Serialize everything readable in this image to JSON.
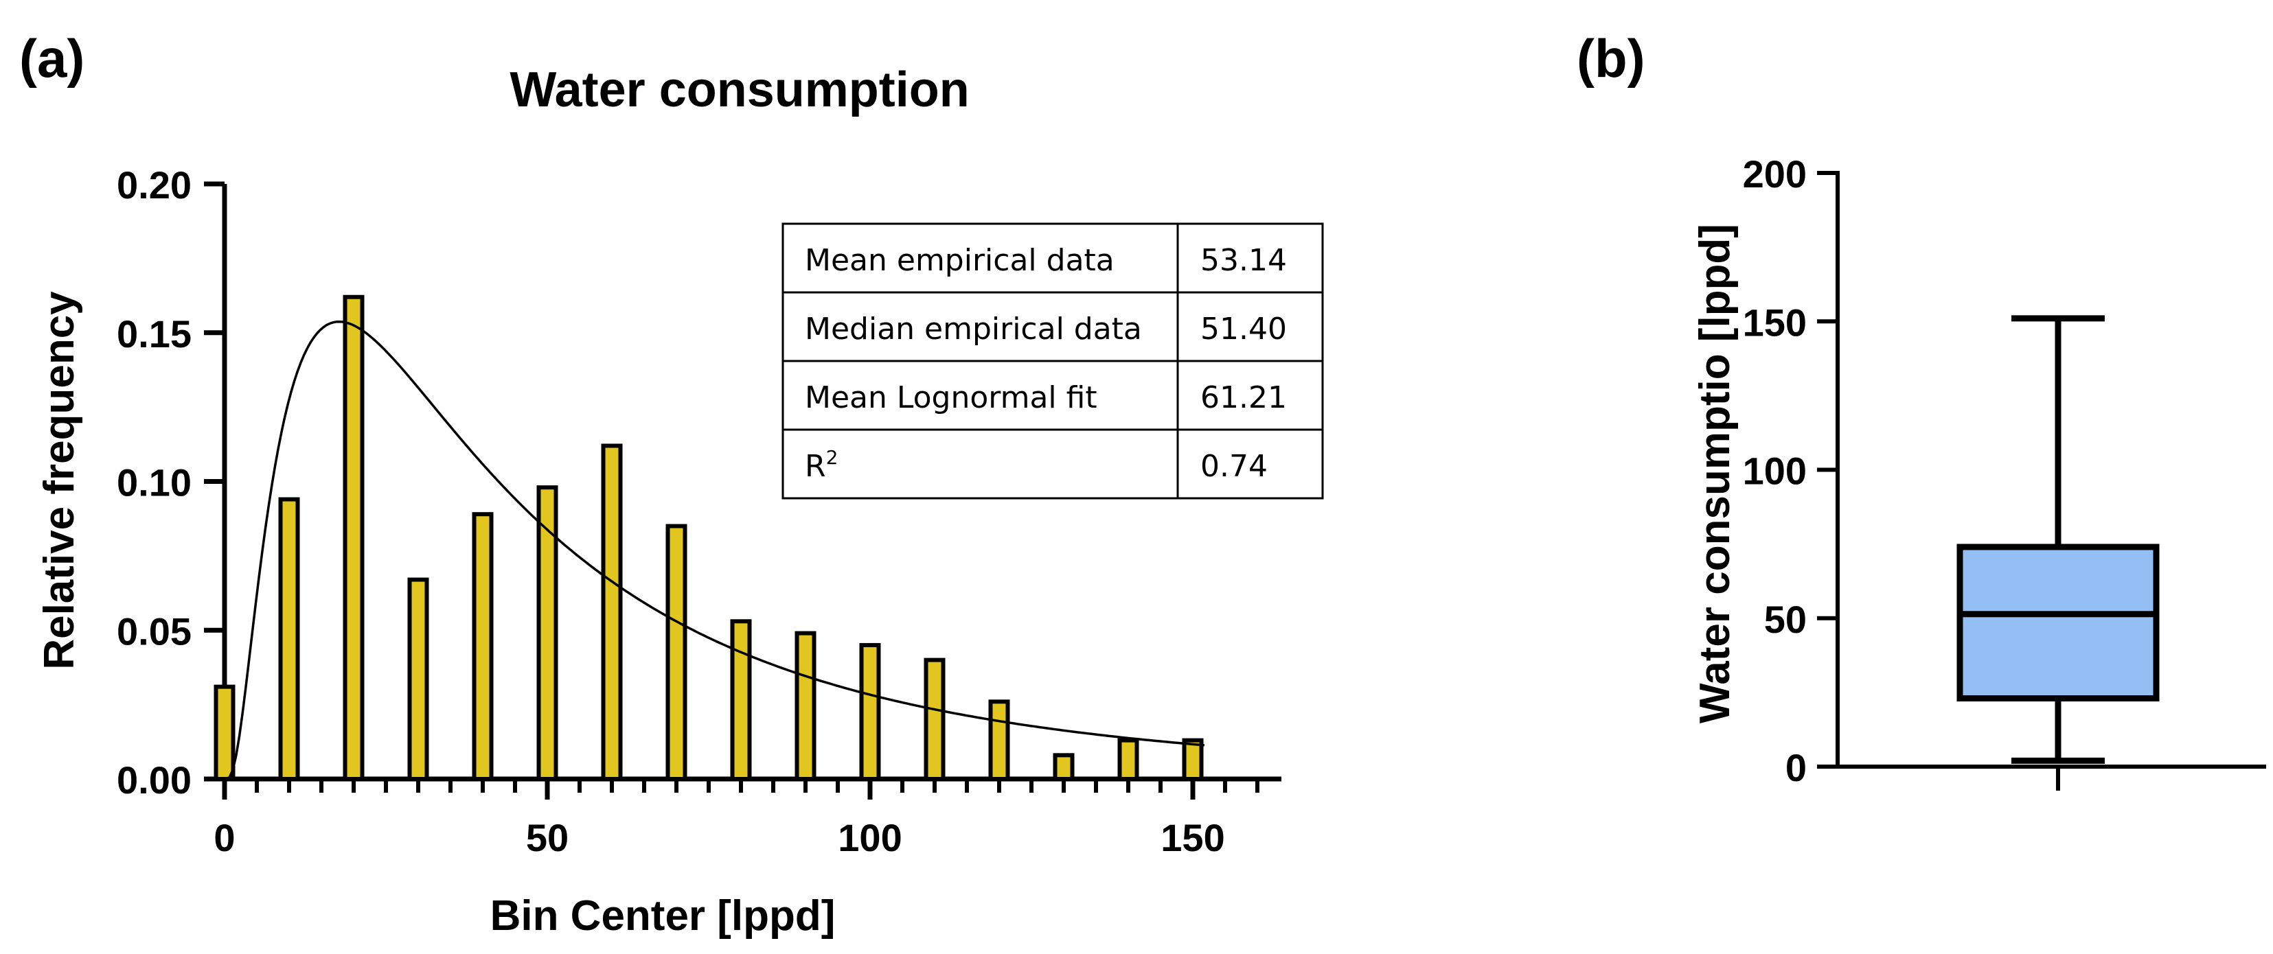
{
  "chart_data": [
    {
      "panel_label": "(a)",
      "type": "bar",
      "title": "Water consumption",
      "xlabel": "Bin Center [lppd]",
      "ylabel": "Relative frequency",
      "xlim": [
        -1,
        160
      ],
      "ylim": [
        0,
        0.2
      ],
      "x_ticks": [
        0,
        50,
        100,
        150
      ],
      "y_ticks": [
        0.0,
        0.05,
        0.1,
        0.15,
        0.2
      ],
      "x_tick_labels": [
        "0",
        "50",
        "100",
        "150"
      ],
      "y_tick_labels": [
        "0.00",
        "0.05",
        "0.10",
        "0.15",
        "0.20"
      ],
      "bar_color": "#e0c61e",
      "series": [
        {
          "name": "Relative frequency",
          "x": [
            0,
            10,
            20,
            30,
            40,
            50,
            60,
            70,
            80,
            90,
            100,
            110,
            120,
            130,
            140,
            150
          ],
          "values": [
            0.031,
            0.094,
            0.162,
            0.067,
            0.089,
            0.098,
            0.112,
            0.085,
            0.053,
            0.049,
            0.045,
            0.04,
            0.026,
            0.008,
            0.013,
            0.013
          ]
        },
        {
          "name": "Lognormal fit",
          "type": "line",
          "mu": 3.76,
          "sigma": 0.94,
          "bin_width": 10
        }
      ],
      "stats_table": {
        "rows": [
          [
            "Mean empirical data",
            "53.14"
          ],
          [
            "Median empirical data",
            "51.40"
          ],
          [
            "Mean Lognormal fit",
            "61.21"
          ],
          [
            "R",
            "0.74"
          ]
        ],
        "r2_superscript": "2"
      }
    },
    {
      "panel_label": "(b)",
      "type": "box",
      "ylabel": "Water consumptio [lppd]",
      "ylim": [
        0,
        200
      ],
      "y_ticks": [
        0,
        50,
        100,
        150,
        200
      ],
      "y_tick_labels": [
        "0",
        "50",
        "100",
        "150",
        "200"
      ],
      "box_color": "#93bff5",
      "box": {
        "min": 2,
        "q1": 23,
        "median": 51.4,
        "q3": 74,
        "max": 151
      }
    }
  ]
}
